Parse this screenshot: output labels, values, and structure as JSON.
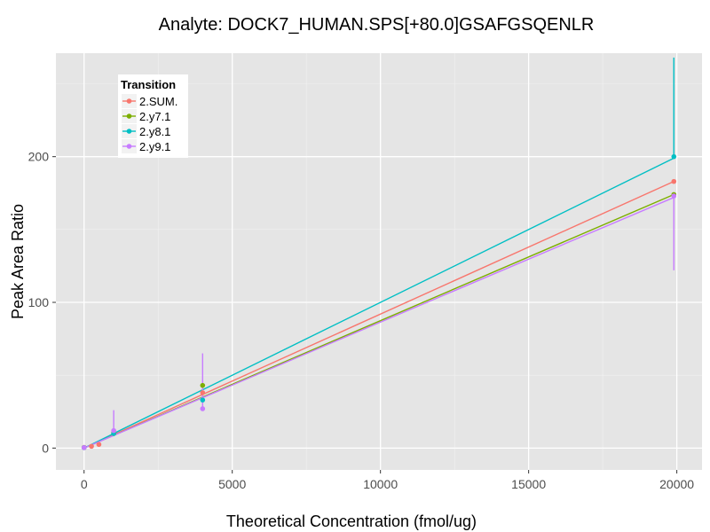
{
  "chart_data": {
    "type": "scatter",
    "title": "Analyte: DOCK7_HUMAN.SPS[+80.0]GSAFGSQENLR",
    "xlabel": "Theoretical Concentration (fmol/ug)",
    "ylabel": "Peak Area Ratio",
    "xlim": [
      -950,
      20850
    ],
    "ylim": [
      -15,
      271
    ],
    "x_ticks": [
      0,
      5000,
      10000,
      15000,
      20000
    ],
    "x_tick_labels": [
      "0",
      "5000",
      "10000",
      "15000",
      "20000"
    ],
    "y_ticks": [
      0,
      100,
      200
    ],
    "y_tick_labels": [
      "0",
      "100",
      "200"
    ],
    "grid": true,
    "legend": {
      "title": "Transition",
      "position": "top-left"
    },
    "series": [
      {
        "name": "2.SUM.",
        "color": "#F8766D",
        "points": [
          {
            "x": 0,
            "y": 0.5
          },
          {
            "x": 250,
            "y": 1.2
          },
          {
            "x": 500,
            "y": 2.5
          },
          {
            "x": 1000,
            "y": 11
          },
          {
            "x": 4000,
            "y": 38
          },
          {
            "x": 19900,
            "y": 183
          }
        ],
        "fit": [
          [
            0,
            0
          ],
          [
            19900,
            183
          ]
        ]
      },
      {
        "name": "2.y7.1",
        "color": "#7CAE00",
        "points": [
          {
            "x": 0,
            "y": 0.3
          },
          {
            "x": 1000,
            "y": 10
          },
          {
            "x": 4000,
            "y": 43
          },
          {
            "x": 19900,
            "y": 174
          }
        ],
        "fit": [
          [
            0,
            0
          ],
          [
            19900,
            174
          ]
        ]
      },
      {
        "name": "2.y8.1",
        "color": "#00BFC4",
        "points": [
          {
            "x": 0,
            "y": 0.3
          },
          {
            "x": 1000,
            "y": 10
          },
          {
            "x": 4000,
            "y": 33
          },
          {
            "x": 19900,
            "y": 200,
            "err": [
              199,
              268
            ]
          }
        ],
        "fit": [
          [
            0,
            0
          ],
          [
            19900,
            199
          ]
        ]
      },
      {
        "name": "2.y9.1",
        "color": "#C77CFF",
        "points": [
          {
            "x": 0,
            "y": 0.3
          },
          {
            "x": 1000,
            "y": 12,
            "err": [
              9,
              26
            ]
          },
          {
            "x": 4000,
            "y": 27,
            "err": [
              27,
              65
            ]
          },
          {
            "x": 19900,
            "y": 173,
            "err": [
              122,
              173
            ]
          }
        ],
        "fit": [
          [
            0,
            0
          ],
          [
            19900,
            172
          ]
        ]
      }
    ]
  }
}
